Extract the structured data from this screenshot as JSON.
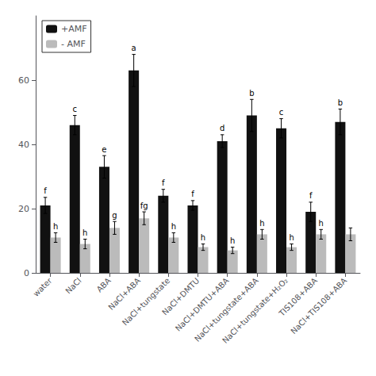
{
  "chart_data": {
    "type": "bar",
    "categories": [
      "water",
      "NaCl",
      "ABA",
      "NaCl+ABA",
      "NaCl+tungstate",
      "NaCl+DMTU",
      "NaCl+DMTU+ABA",
      "NaCl+tungstate+ABA",
      "NaCl+tungstate+H₂O₂",
      "TIS108+ABA",
      "NaCl+TIS108+ABA"
    ],
    "series": [
      {
        "name": "+AMF",
        "color": "#111111",
        "values": [
          21,
          46,
          33,
          63,
          24,
          21,
          41,
          49,
          45,
          19,
          47
        ],
        "errors": [
          2.5,
          3.0,
          3.5,
          5.0,
          2.0,
          1.5,
          2.0,
          5.0,
          3.0,
          3.0,
          4.0
        ],
        "annotations": [
          "f",
          "c",
          "e",
          "a",
          "f",
          "f",
          "d",
          "b",
          "c",
          "f",
          "b"
        ]
      },
      {
        "name": "- AMF",
        "color": "#bbbbbb",
        "values": [
          11,
          9,
          14,
          17,
          11,
          8,
          7,
          12,
          8,
          12,
          12
        ],
        "errors": [
          1.5,
          1.5,
          2.0,
          2.0,
          1.5,
          1.0,
          1.0,
          1.5,
          1.0,
          1.5,
          2.0
        ],
        "annotations": [
          "h",
          "h",
          "g",
          "fg",
          "h",
          "h",
          "h",
          "h",
          "h",
          "h",
          null
        ]
      }
    ],
    "ylim": [
      0,
      80
    ],
    "yticks": [
      0,
      20,
      40,
      60
    ],
    "grid": false,
    "legend": "upper left"
  }
}
